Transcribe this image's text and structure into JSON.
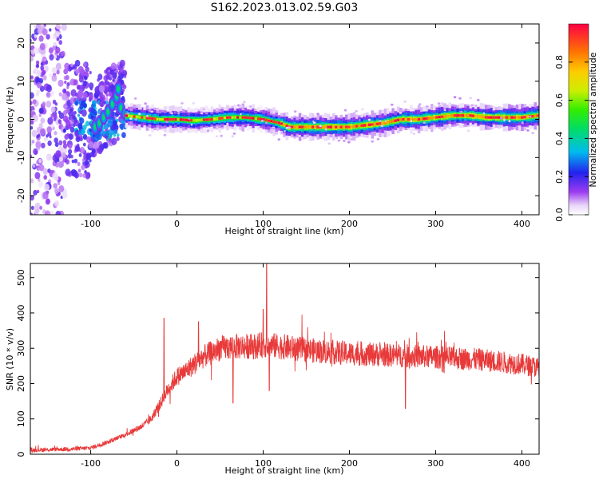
{
  "title": "S162.2023.013.02.59.G03",
  "colors": {
    "snr_line": "#e83a3a",
    "axis": "#000000",
    "background": "#ffffff"
  },
  "chart_data": [
    {
      "type": "heatmap",
      "name": "spectrogram",
      "xlabel": "Height of straight line (km)",
      "ylabel": "Frequency (Hz)",
      "xlim": [
        -170,
        420
      ],
      "ylim": [
        -25,
        25
      ],
      "xticks": [
        -100,
        0,
        100,
        200,
        300,
        400
      ],
      "yticks": [
        -20,
        -10,
        0,
        10,
        20
      ],
      "colorbar": {
        "label": "Normalized spectral amplitude",
        "range": [
          0,
          1
        ],
        "ticks": [
          0.0,
          0.2,
          0.4,
          0.6,
          0.8
        ],
        "colormap": "rainbow (purple-blue-cyan-green-yellow-orange-red)"
      },
      "ridge": {
        "description": "peak frequency vs height",
        "x": [
          -60,
          -40,
          -20,
          0,
          20,
          40,
          60,
          80,
          100,
          120,
          130,
          160,
          200,
          220,
          240,
          260,
          280,
          300,
          320,
          340,
          360,
          380,
          400,
          420
        ],
        "y": [
          1.0,
          0.5,
          0.0,
          0.0,
          -0.3,
          0.0,
          0.5,
          0.5,
          0.0,
          -1.0,
          -2.0,
          -2.0,
          -2.0,
          -1.5,
          -1.0,
          0.0,
          0.0,
          0.5,
          1.0,
          1.0,
          0.5,
          0.5,
          0.5,
          1.0
        ]
      }
    },
    {
      "type": "line",
      "name": "snr",
      "xlabel": "Height of straight line (km)",
      "ylabel": "SNR (10 * v/v)",
      "xlim": [
        -170,
        420
      ],
      "ylim": [
        0,
        540
      ],
      "xticks": [
        -100,
        0,
        100,
        200,
        300,
        400
      ],
      "yticks": [
        0,
        100,
        200,
        300,
        400,
        500
      ],
      "series": [
        {
          "trend_x": [
            -170,
            -120,
            -100,
            -80,
            -60,
            -40,
            -30,
            -20,
            -10,
            0,
            10,
            20,
            30,
            50,
            70,
            90,
            100,
            120,
            150,
            200,
            250,
            300,
            350,
            400,
            420
          ],
          "trend_y": [
            12,
            15,
            18,
            35,
            55,
            80,
            100,
            140,
            185,
            220,
            235,
            255,
            275,
            300,
            305,
            305,
            310,
            305,
            295,
            285,
            280,
            275,
            268,
            255,
            245
          ],
          "spikes": [
            {
              "x": -15,
              "y": 385
            },
            {
              "x": 25,
              "y": 375
            },
            {
              "x": 100,
              "y": 410
            },
            {
              "x": 104,
              "y": 540
            },
            {
              "x": 107,
              "y": 180
            },
            {
              "x": 145,
              "y": 395
            },
            {
              "x": 65,
              "y": 145
            },
            {
              "x": 265,
              "y": 130
            }
          ]
        }
      ]
    }
  ]
}
